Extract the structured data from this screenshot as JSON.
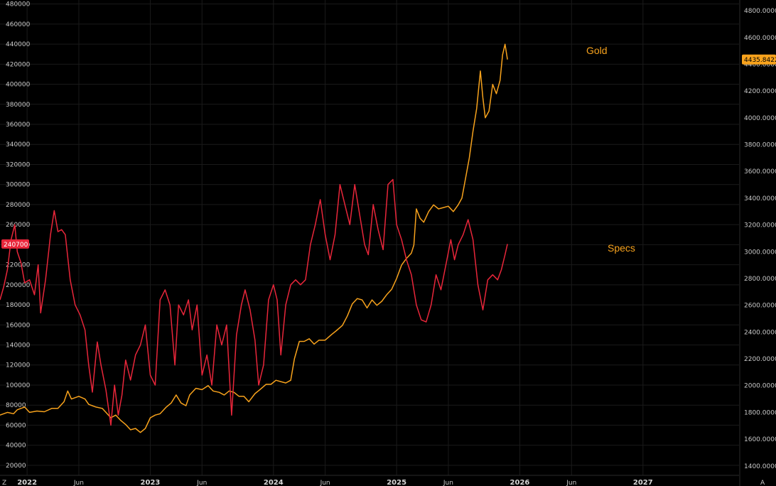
{
  "colors": {
    "background": "#000000",
    "grid": "#1a1a1a",
    "gold": "#f7a21c",
    "specs": "#e8263a",
    "axis_text": "#c8c8c8"
  },
  "corner_glyphs": {
    "left": "Z",
    "right": "A"
  },
  "chart_data": {
    "type": "line",
    "grid": true,
    "x_ticks": [
      {
        "t": 2022.08,
        "label": "2022",
        "year": true
      },
      {
        "t": 2022.5,
        "label": "Jun",
        "year": false
      },
      {
        "t": 2023.08,
        "label": "2023",
        "year": true
      },
      {
        "t": 2023.5,
        "label": "Jun",
        "year": false
      },
      {
        "t": 2024.08,
        "label": "2024",
        "year": true
      },
      {
        "t": 2024.5,
        "label": "Jun",
        "year": false
      },
      {
        "t": 2025.08,
        "label": "2025",
        "year": true
      },
      {
        "t": 2025.5,
        "label": "Jun",
        "year": false
      },
      {
        "t": 2026.08,
        "label": "2026",
        "year": true
      },
      {
        "t": 2026.5,
        "label": "Jun",
        "year": false
      },
      {
        "t": 2027.08,
        "label": "2027",
        "year": true
      }
    ],
    "x_range": [
      2021.86,
      2027.86
    ],
    "left_axis": {
      "range": [
        10000,
        484000
      ],
      "ticks": [
        20000,
        40000,
        60000,
        80000,
        100000,
        120000,
        140000,
        160000,
        180000,
        200000,
        220000,
        240000,
        260000,
        280000,
        300000,
        320000,
        340000,
        360000,
        380000,
        400000,
        420000,
        440000,
        460000,
        480000
      ],
      "last_value_label": "240700"
    },
    "right_axis": {
      "range": [
        1330,
        4880
      ],
      "ticks": [
        1400,
        1600,
        1800,
        2000,
        2200,
        2400,
        2600,
        2800,
        3000,
        3200,
        3400,
        3600,
        3800,
        4000,
        4200,
        4400,
        4600,
        4800
      ],
      "tick_labels": [
        "1400.0000",
        "1600.0000",
        "1800.0000",
        "2000.0000",
        "2200.0000",
        "2400.0000",
        "2600.0000",
        "2800.0000",
        "3000.0000",
        "3200.0000",
        "3400.0000",
        "3600.0000",
        "3800.0000",
        "4000.0000",
        "4200.0000",
        "4400.0000",
        "4600.0000",
        "4800.0000"
      ],
      "last_value_label": "4435.8422"
    },
    "series": [
      {
        "name": "Gold",
        "axis": "right",
        "points": [
          [
            2021.86,
            1780
          ],
          [
            2021.92,
            1800
          ],
          [
            2021.97,
            1790
          ],
          [
            2022.0,
            1820
          ],
          [
            2022.06,
            1840
          ],
          [
            2022.1,
            1800
          ],
          [
            2022.16,
            1810
          ],
          [
            2022.22,
            1805
          ],
          [
            2022.28,
            1830
          ],
          [
            2022.33,
            1830
          ],
          [
            2022.38,
            1880
          ],
          [
            2022.41,
            1960
          ],
          [
            2022.44,
            1900
          ],
          [
            2022.5,
            1920
          ],
          [
            2022.55,
            1900
          ],
          [
            2022.58,
            1860
          ],
          [
            2022.64,
            1840
          ],
          [
            2022.69,
            1830
          ],
          [
            2022.72,
            1800
          ],
          [
            2022.76,
            1760
          ],
          [
            2022.8,
            1780
          ],
          [
            2022.84,
            1740
          ],
          [
            2022.88,
            1710
          ],
          [
            2022.92,
            1670
          ],
          [
            2022.96,
            1680
          ],
          [
            2023.0,
            1650
          ],
          [
            2023.04,
            1680
          ],
          [
            2023.08,
            1760
          ],
          [
            2023.12,
            1780
          ],
          [
            2023.16,
            1790
          ],
          [
            2023.21,
            1840
          ],
          [
            2023.25,
            1870
          ],
          [
            2023.29,
            1930
          ],
          [
            2023.33,
            1870
          ],
          [
            2023.37,
            1850
          ],
          [
            2023.4,
            1930
          ],
          [
            2023.45,
            1980
          ],
          [
            2023.5,
            1970
          ],
          [
            2023.55,
            2000
          ],
          [
            2023.59,
            1960
          ],
          [
            2023.64,
            1950
          ],
          [
            2023.68,
            1930
          ],
          [
            2023.72,
            1960
          ],
          [
            2023.76,
            1950
          ],
          [
            2023.8,
            1920
          ],
          [
            2023.84,
            1920
          ],
          [
            2023.88,
            1880
          ],
          [
            2023.93,
            1940
          ],
          [
            2023.97,
            1970
          ],
          [
            2024.02,
            2010
          ],
          [
            2024.06,
            2010
          ],
          [
            2024.1,
            2040
          ],
          [
            2024.14,
            2030
          ],
          [
            2024.18,
            2020
          ],
          [
            2024.22,
            2040
          ],
          [
            2024.25,
            2200
          ],
          [
            2024.29,
            2330
          ],
          [
            2024.33,
            2330
          ],
          [
            2024.37,
            2350
          ],
          [
            2024.41,
            2310
          ],
          [
            2024.45,
            2340
          ],
          [
            2024.5,
            2340
          ],
          [
            2024.55,
            2380
          ],
          [
            2024.59,
            2410
          ],
          [
            2024.64,
            2450
          ],
          [
            2024.68,
            2520
          ],
          [
            2024.72,
            2610
          ],
          [
            2024.76,
            2650
          ],
          [
            2024.8,
            2640
          ],
          [
            2024.84,
            2580
          ],
          [
            2024.88,
            2640
          ],
          [
            2024.92,
            2600
          ],
          [
            2024.96,
            2630
          ],
          [
            2025.0,
            2680
          ],
          [
            2025.04,
            2720
          ],
          [
            2025.08,
            2800
          ],
          [
            2025.12,
            2900
          ],
          [
            2025.16,
            2950
          ],
          [
            2025.2,
            2990
          ],
          [
            2025.22,
            3050
          ],
          [
            2025.24,
            3320
          ],
          [
            2025.27,
            3250
          ],
          [
            2025.3,
            3220
          ],
          [
            2025.34,
            3300
          ],
          [
            2025.38,
            3350
          ],
          [
            2025.42,
            3320
          ],
          [
            2025.46,
            3330
          ],
          [
            2025.5,
            3340
          ],
          [
            2025.54,
            3300
          ],
          [
            2025.58,
            3350
          ],
          [
            2025.61,
            3400
          ],
          [
            2025.64,
            3550
          ],
          [
            2025.67,
            3700
          ],
          [
            2025.7,
            3900
          ],
          [
            2025.73,
            4070
          ],
          [
            2025.76,
            4350
          ],
          [
            2025.78,
            4150
          ],
          [
            2025.8,
            4000
          ],
          [
            2025.83,
            4050
          ],
          [
            2025.86,
            4250
          ],
          [
            2025.89,
            4180
          ],
          [
            2025.92,
            4280
          ],
          [
            2025.94,
            4470
          ],
          [
            2025.96,
            4550
          ],
          [
            2025.98,
            4435.8422
          ]
        ]
      },
      {
        "name": "Specs",
        "axis": "left",
        "points": [
          [
            2021.86,
            185000
          ],
          [
            2021.89,
            198000
          ],
          [
            2021.92,
            215000
          ],
          [
            2021.95,
            245000
          ],
          [
            2021.98,
            260000
          ],
          [
            2022.0,
            233000
          ],
          [
            2022.03,
            222000
          ],
          [
            2022.06,
            202000
          ],
          [
            2022.1,
            205000
          ],
          [
            2022.14,
            190000
          ],
          [
            2022.17,
            220000
          ],
          [
            2022.19,
            172000
          ],
          [
            2022.23,
            205000
          ],
          [
            2022.27,
            250000
          ],
          [
            2022.3,
            274000
          ],
          [
            2022.33,
            253000
          ],
          [
            2022.36,
            255000
          ],
          [
            2022.39,
            250000
          ],
          [
            2022.43,
            205000
          ],
          [
            2022.47,
            180000
          ],
          [
            2022.51,
            170000
          ],
          [
            2022.55,
            155000
          ],
          [
            2022.58,
            120000
          ],
          [
            2022.61,
            93000
          ],
          [
            2022.65,
            143000
          ],
          [
            2022.68,
            120000
          ],
          [
            2022.72,
            95000
          ],
          [
            2022.76,
            60000
          ],
          [
            2022.79,
            100000
          ],
          [
            2022.82,
            70000
          ],
          [
            2022.85,
            90000
          ],
          [
            2022.88,
            125000
          ],
          [
            2022.92,
            105000
          ],
          [
            2022.96,
            130000
          ],
          [
            2023.0,
            140000
          ],
          [
            2023.04,
            160000
          ],
          [
            2023.08,
            110000
          ],
          [
            2023.12,
            100000
          ],
          [
            2023.16,
            185000
          ],
          [
            2023.2,
            195000
          ],
          [
            2023.24,
            180000
          ],
          [
            2023.28,
            120000
          ],
          [
            2023.31,
            180000
          ],
          [
            2023.35,
            170000
          ],
          [
            2023.39,
            185000
          ],
          [
            2023.42,
            155000
          ],
          [
            2023.46,
            180000
          ],
          [
            2023.5,
            110000
          ],
          [
            2023.54,
            130000
          ],
          [
            2023.58,
            100000
          ],
          [
            2023.62,
            160000
          ],
          [
            2023.66,
            140000
          ],
          [
            2023.7,
            160000
          ],
          [
            2023.74,
            70000
          ],
          [
            2023.78,
            150000
          ],
          [
            2023.82,
            180000
          ],
          [
            2023.85,
            195000
          ],
          [
            2023.89,
            175000
          ],
          [
            2023.93,
            145000
          ],
          [
            2023.96,
            100000
          ],
          [
            2024.0,
            120000
          ],
          [
            2024.04,
            185000
          ],
          [
            2024.08,
            200000
          ],
          [
            2024.11,
            185000
          ],
          [
            2024.14,
            130000
          ],
          [
            2024.18,
            180000
          ],
          [
            2024.22,
            200000
          ],
          [
            2024.26,
            205000
          ],
          [
            2024.3,
            200000
          ],
          [
            2024.34,
            205000
          ],
          [
            2024.38,
            240000
          ],
          [
            2024.42,
            260000
          ],
          [
            2024.46,
            285000
          ],
          [
            2024.5,
            250000
          ],
          [
            2024.54,
            225000
          ],
          [
            2024.58,
            250000
          ],
          [
            2024.62,
            300000
          ],
          [
            2024.66,
            280000
          ],
          [
            2024.7,
            260000
          ],
          [
            2024.74,
            300000
          ],
          [
            2024.78,
            270000
          ],
          [
            2024.82,
            240000
          ],
          [
            2024.85,
            230000
          ],
          [
            2024.89,
            280000
          ],
          [
            2024.93,
            255000
          ],
          [
            2024.97,
            235000
          ],
          [
            2025.01,
            300000
          ],
          [
            2025.05,
            305000
          ],
          [
            2025.08,
            260000
          ],
          [
            2025.12,
            245000
          ],
          [
            2025.16,
            225000
          ],
          [
            2025.2,
            210000
          ],
          [
            2025.24,
            180000
          ],
          [
            2025.28,
            165000
          ],
          [
            2025.32,
            163000
          ],
          [
            2025.36,
            180000
          ],
          [
            2025.4,
            210000
          ],
          [
            2025.44,
            195000
          ],
          [
            2025.48,
            220000
          ],
          [
            2025.52,
            245000
          ],
          [
            2025.55,
            225000
          ],
          [
            2025.58,
            240000
          ],
          [
            2025.62,
            250000
          ],
          [
            2025.66,
            265000
          ],
          [
            2025.7,
            245000
          ],
          [
            2025.74,
            200000
          ],
          [
            2025.78,
            175000
          ],
          [
            2025.82,
            205000
          ],
          [
            2025.86,
            210000
          ],
          [
            2025.9,
            205000
          ],
          [
            2025.93,
            215000
          ],
          [
            2025.96,
            230000
          ],
          [
            2025.98,
            240700
          ]
        ]
      }
    ],
    "labels": {
      "gold": "Gold",
      "specs": "Specs"
    }
  }
}
